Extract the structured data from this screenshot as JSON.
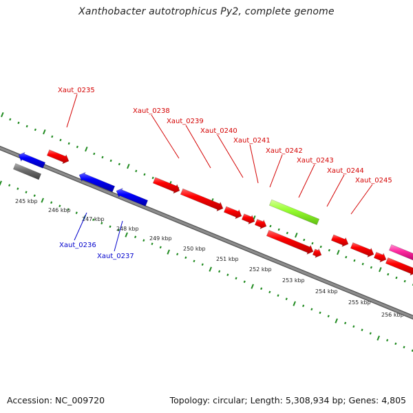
{
  "title": "Xanthobacter autotrophicus Py2, complete genome",
  "footer": {
    "accession": "Accession: NC_009720",
    "summary": "Topology: circular; Length: 5,308,934 bp; Genes: 4,805"
  },
  "colors": {
    "backbone": "#8c8c8c",
    "tick": "#1f8a1f",
    "forward_gene": "#ff0000",
    "reverse_gene": "#0000ff",
    "other_gene": "#7f7f7f",
    "highlight_green": "#99ff33",
    "highlight_pink": "#ff2aa0",
    "forward_label": "#d40000",
    "reverse_label": "#0000cc"
  },
  "scale_labels": [
    "245 kbp",
    "246 kbp",
    "247 kbp",
    "248 kbp",
    "249 kbp",
    "250 kbp",
    "251 kbp",
    "252 kbp",
    "253 kbp",
    "254 kbp",
    "255 kbp",
    "256 kbp"
  ],
  "gene_labels": {
    "forward": [
      "Xaut_0235",
      "Xaut_0238",
      "Xaut_0239",
      "Xaut_0240",
      "Xaut_0241",
      "Xaut_0242",
      "Xaut_0243",
      "Xaut_0244",
      "Xaut_0245"
    ],
    "reverse": [
      "Xaut_0236",
      "Xaut_0237"
    ]
  }
}
